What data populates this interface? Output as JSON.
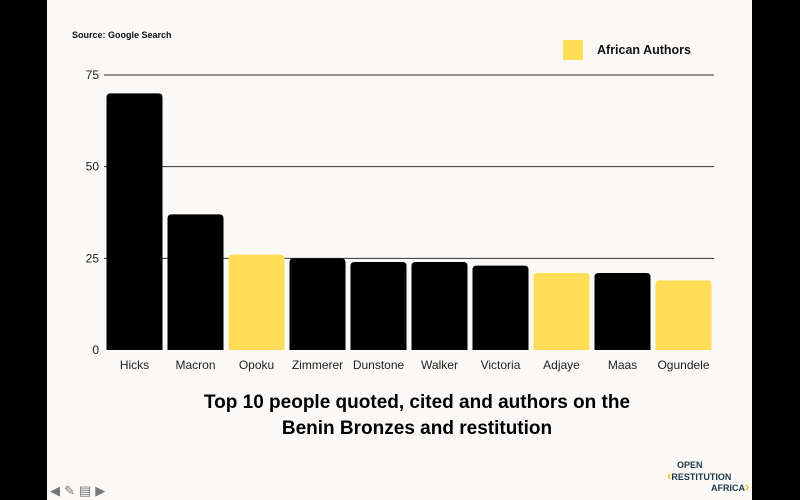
{
  "chart_data": {
    "type": "bar",
    "title": "Top 10 people quoted, cited and authors on the Benin Bronzes and restitution",
    "title_lines": [
      "Top 10 people quoted, cited and authors on the",
      "Benin Bronzes and restitution"
    ],
    "source": "Source: Google Search",
    "categories": [
      "Hicks",
      "Macron",
      "Opoku",
      "Zimmerer",
      "Dunstone",
      "Walker",
      "Victoria",
      "Adjaye",
      "Maas",
      "Ogundele"
    ],
    "values": [
      70,
      37,
      26,
      25,
      24,
      24,
      23,
      21,
      21,
      19
    ],
    "african_author": [
      false,
      false,
      true,
      false,
      false,
      false,
      false,
      true,
      false,
      true
    ],
    "legend": [
      {
        "label": "African Authors",
        "color": "#ffdd57"
      }
    ],
    "legend_position": "top-right",
    "yticks": [
      0,
      25,
      50,
      75
    ],
    "ylim": [
      0,
      75
    ],
    "grid": true,
    "colors": {
      "default": "#000000",
      "african": "#ffdd57"
    }
  },
  "logo": {
    "line1": "OPEN",
    "line2": "RESTITUTION",
    "line3": "AFRICA"
  },
  "controls": [
    "back-arrow",
    "pen",
    "notes",
    "forward-arrow"
  ]
}
